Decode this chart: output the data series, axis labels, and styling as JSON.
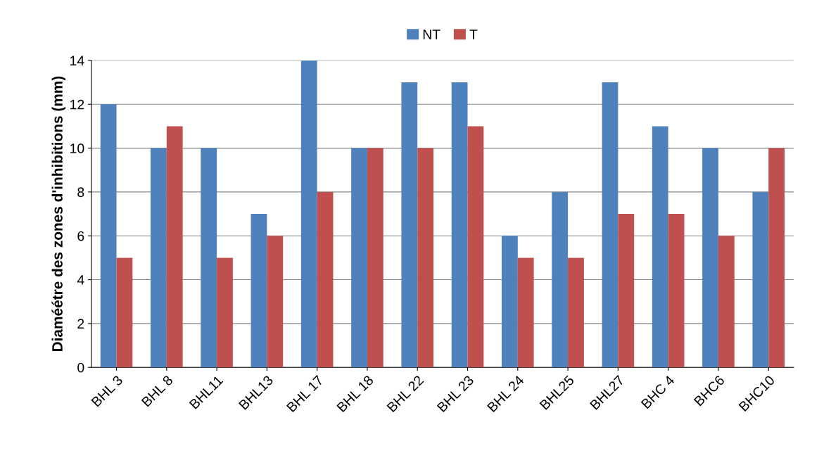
{
  "chart_data": {
    "type": "bar",
    "ylabel": "Diaméétre des zones d'inhibitions (mm)",
    "categories": [
      "BHL 3",
      "BHL 8",
      "BHL11",
      "BHL13",
      "BHL 17",
      "BHL 18",
      "BHL 22",
      "BHL 23",
      "BHL 24",
      "BHL25",
      "BHL27",
      "BHC 4",
      "BHC6",
      "BHC10"
    ],
    "series": [
      {
        "name": "NT",
        "color": "#4f81bd",
        "values": [
          12,
          10,
          10,
          7,
          14,
          10,
          13,
          13,
          6,
          8,
          13,
          11,
          10,
          8
        ]
      },
      {
        "name": "T",
        "color": "#c0504d",
        "values": [
          5,
          11,
          5,
          6,
          8,
          10,
          10,
          11,
          5,
          5,
          7,
          7,
          6,
          10
        ]
      }
    ],
    "ylim": [
      0,
      14
    ],
    "yticks": [
      0,
      2,
      4,
      6,
      8,
      10,
      12,
      14
    ],
    "grid": "y",
    "legend": "top"
  }
}
